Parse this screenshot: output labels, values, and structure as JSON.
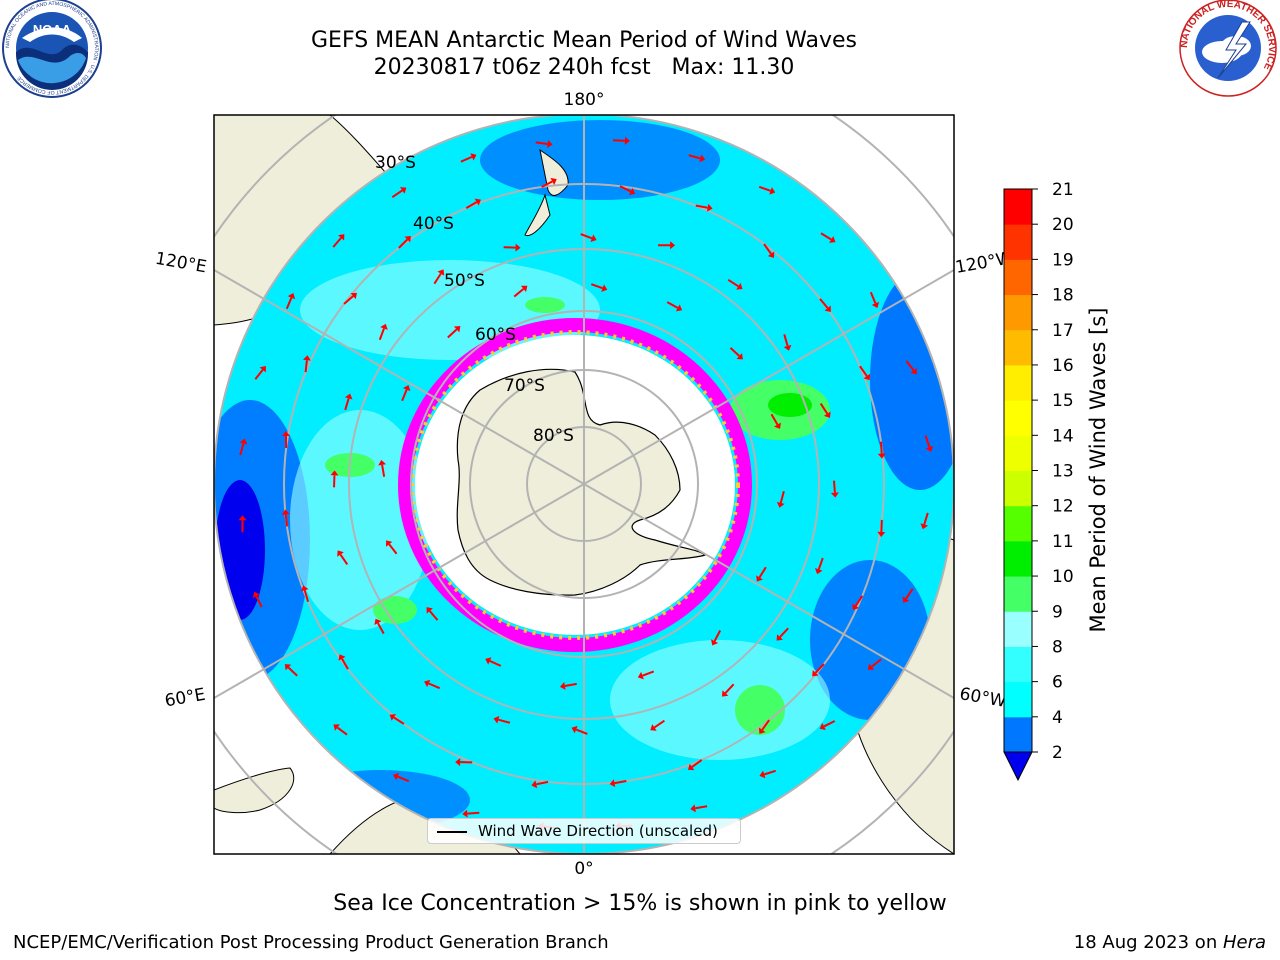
{
  "header": {
    "title_line1": "GEFS MEAN Antarctic Mean Period of Wind Waves",
    "title_line2": "20230817 t06z 240h fcst   Max: 11.30"
  },
  "logos": {
    "left": "noaa-logo",
    "right": "national-weather-service-logo",
    "noaa_text": "NOAA",
    "noaa_ring_text": "NATIONAL OCEANIC AND ATMOSPHERIC ADMINISTRATION · U.S. DEPARTMENT OF COMMERCE",
    "nws_ring_text": "NATIONAL WEATHER SERVICE"
  },
  "map": {
    "projection": "south-polar-stereographic",
    "longitude_labels": {
      "top": "180°",
      "bottom": "0°",
      "upper_left": "120°E",
      "upper_right": "120°W",
      "lower_left": "60°E",
      "lower_right": "60°W"
    },
    "latitude_labels": [
      "30°S",
      "40°S",
      "50°S",
      "60°S",
      "70°S",
      "80°S"
    ],
    "legend_label": "Wind Wave Direction (unscaled)",
    "arrow_color": "#ff0000",
    "land_color": "#efeedb",
    "ice_colors": [
      "#ff00ff",
      "#ff66cc",
      "#ffcc33",
      "#ffff66"
    ]
  },
  "colorbar": {
    "label": "Mean Period of Wind Waves [s]",
    "ticks": [
      "2",
      "4",
      "6",
      "8",
      "9",
      "10",
      "11",
      "12",
      "13",
      "14",
      "15",
      "16",
      "17",
      "18",
      "19",
      "20",
      "21"
    ],
    "colors": [
      "#0077ff",
      "#00ffff",
      "#33ffff",
      "#99ffff",
      "#44ff66",
      "#00ee00",
      "#55ff00",
      "#ccff00",
      "#eeff00",
      "#ffff00",
      "#ffee00",
      "#ffbb00",
      "#ff9900",
      "#ff6600",
      "#ff3300",
      "#ff0000"
    ],
    "under_color": "#0000ee"
  },
  "caption": "Sea Ice Concentration > 15% is shown in pink to yellow",
  "footer": {
    "left": "NCEP/EMC/Verification Post Processing Product Generation Branch",
    "right_date": "18 Aug 2023 on ",
    "right_machine": "Hera"
  }
}
